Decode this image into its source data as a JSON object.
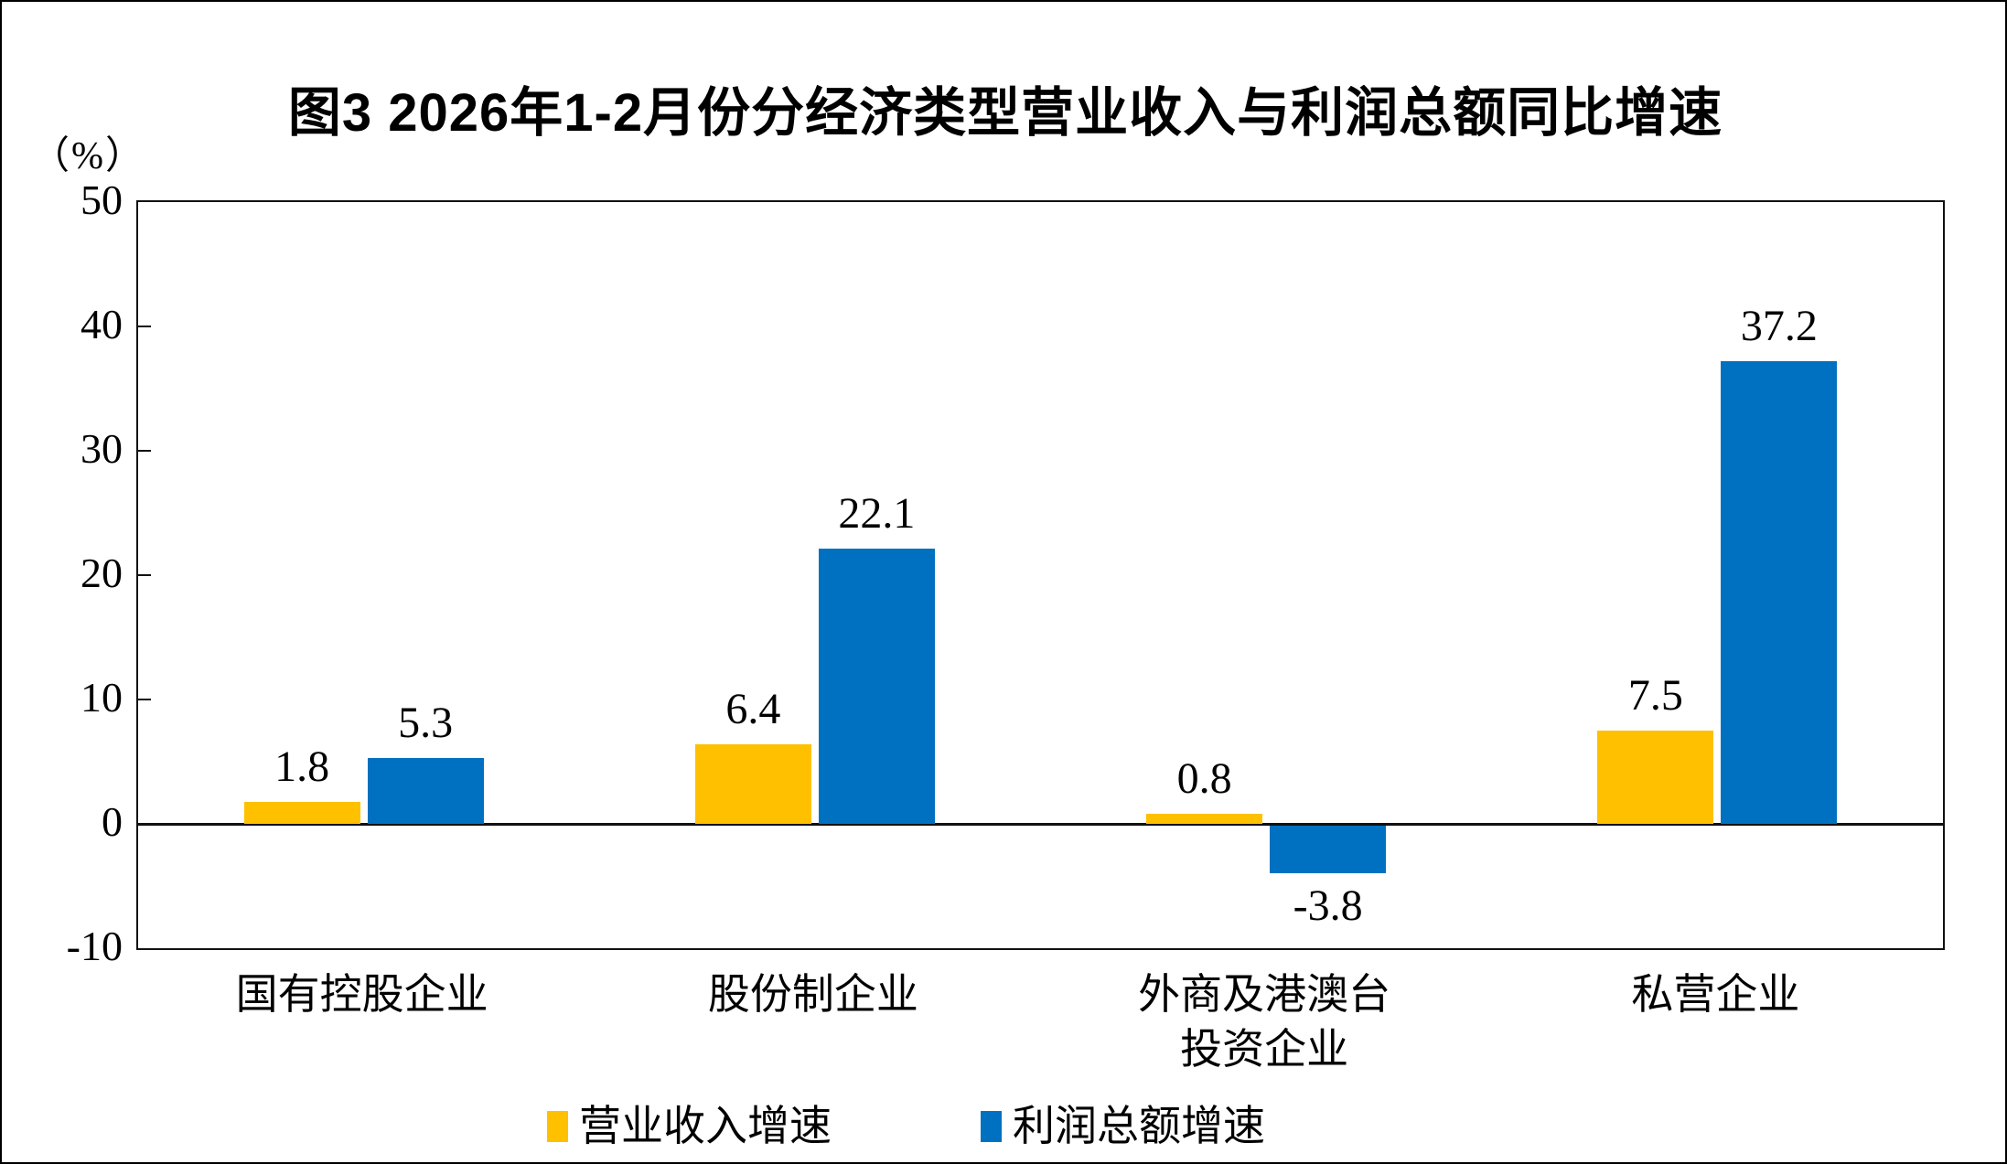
{
  "figure": {
    "border_color": "#000000",
    "axis_color": "#111111",
    "background": "#ffffff"
  },
  "chart_data": {
    "type": "bar",
    "title": "图3  2026年1-2月份分经济类型营业收入与利润总额同比增速",
    "unit_label": "（%）",
    "categories": [
      "国有控股企业",
      "股份制企业",
      "外商及港澳台投资企业",
      "私营企业"
    ],
    "category_lines": [
      [
        "国有控股企业"
      ],
      [
        "股份制企业"
      ],
      [
        "外商及港澳台",
        "投资企业"
      ],
      [
        "私营企业"
      ]
    ],
    "series": [
      {
        "name": "营业收入增速",
        "color": "#FFC000",
        "values": [
          1.8,
          6.4,
          0.8,
          7.5
        ]
      },
      {
        "name": "利润总额增速",
        "color": "#0071C0",
        "values": [
          5.3,
          22.1,
          -3.8,
          37.2
        ]
      }
    ],
    "ylim": [
      -10,
      50
    ],
    "ytick_step": 10,
    "yticks": [
      50,
      40,
      30,
      20,
      10,
      0,
      -10
    ],
    "legend": [
      "营业收入增速",
      "利润总额增速"
    ],
    "legend_position": "bottom",
    "grid": false,
    "zero_line": true,
    "value_labels": true
  }
}
